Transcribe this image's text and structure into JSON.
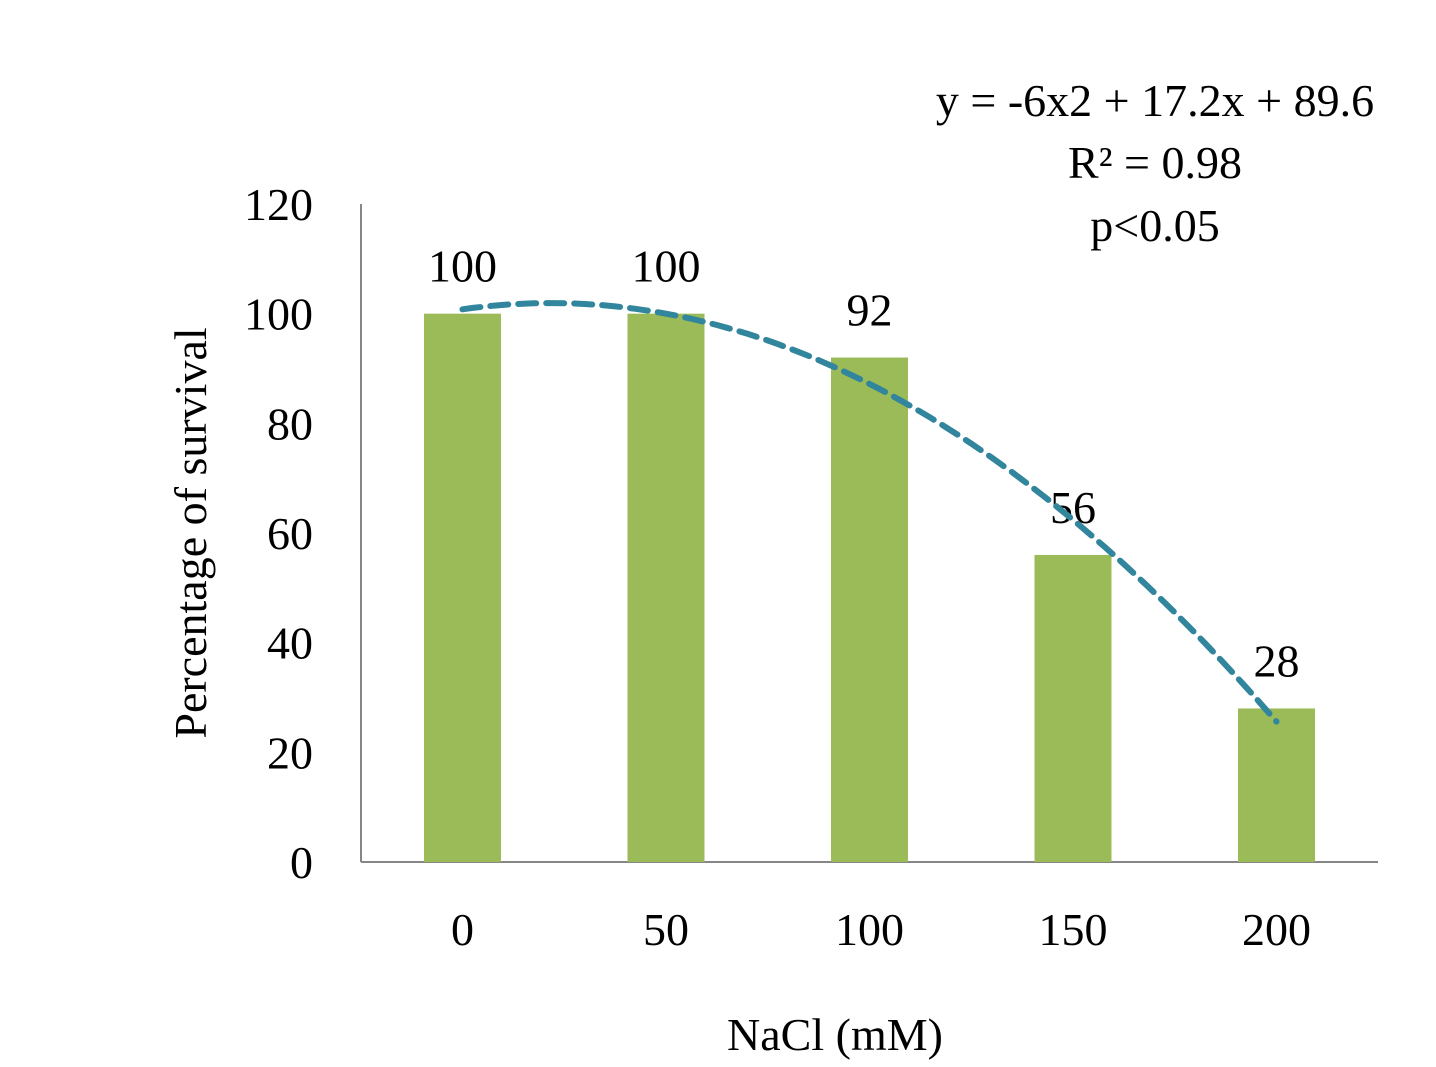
{
  "chart_data": {
    "type": "bar",
    "categories": [
      "0",
      "50",
      "100",
      "150",
      "200"
    ],
    "values": [
      100,
      100,
      92,
      56,
      28
    ],
    "data_labels": [
      "100",
      "100",
      "92",
      "56",
      "28"
    ],
    "title": "",
    "xlabel": "NaCl (mM)",
    "ylabel": "Percentage of survival",
    "ylim": [
      0,
      120
    ],
    "yticks": [
      "0",
      "20",
      "40",
      "60",
      "80",
      "100",
      "120"
    ],
    "grid": false,
    "legend": "none",
    "bar_color": "#9BBB59",
    "trendline": {
      "type": "polynomial",
      "order": 2,
      "coefficients": [
        -6,
        17.2,
        89.6
      ],
      "style": "dashed",
      "color": "#31859C"
    },
    "annotation": {
      "equation": "y = -6x2 + 17.2x + 89.6",
      "r_squared": "R² = 0.98",
      "p_value": "p<0.05"
    }
  }
}
